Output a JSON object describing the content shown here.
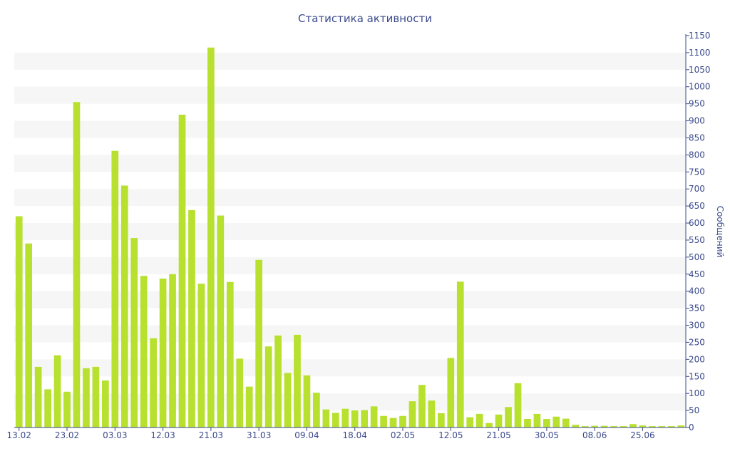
{
  "colors": {
    "bar": "#b8e02e",
    "band": "#f6f6f6",
    "axis": "#3b4a8c",
    "text": "#3b4a8c"
  },
  "chart_data": {
    "type": "bar",
    "title": "Статистика активности",
    "ylabel": "Сообщений",
    "ylim": [
      0,
      1150
    ],
    "y_tick_step": 50,
    "grid": "alternating horizontal bands",
    "legend": "none",
    "x_tick_labels": [
      {
        "label": "13.02",
        "index": 0
      },
      {
        "label": "23.02",
        "index": 5
      },
      {
        "label": "03.03",
        "index": 10
      },
      {
        "label": "12.03",
        "index": 15
      },
      {
        "label": "21.03",
        "index": 20
      },
      {
        "label": "31.03",
        "index": 25
      },
      {
        "label": "09.04",
        "index": 30
      },
      {
        "label": "18.04",
        "index": 35
      },
      {
        "label": "02.05",
        "index": 40
      },
      {
        "label": "12.05",
        "index": 45
      },
      {
        "label": "21.05",
        "index": 50
      },
      {
        "label": "30.05",
        "index": 55
      },
      {
        "label": "08.06",
        "index": 60
      },
      {
        "label": "25.06",
        "index": 65
      }
    ],
    "values": [
      620,
      540,
      178,
      112,
      212,
      105,
      955,
      174,
      178,
      138,
      812,
      710,
      556,
      445,
      262,
      437,
      450,
      918,
      638,
      422,
      1115,
      622,
      427,
      202,
      120,
      492,
      238,
      270,
      160,
      272,
      153,
      102,
      53,
      43,
      55,
      50,
      51,
      62,
      34,
      28,
      34,
      77,
      125,
      79,
      42,
      204,
      428,
      30,
      40,
      13,
      38,
      60,
      130,
      25,
      40,
      25,
      32,
      26,
      8,
      4,
      5,
      5,
      4,
      4,
      10,
      6,
      4,
      4,
      4,
      6
    ]
  }
}
